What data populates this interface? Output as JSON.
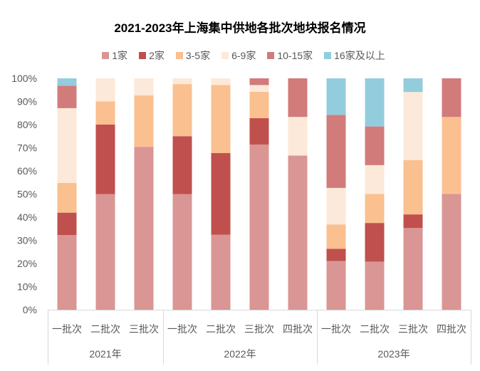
{
  "chart_data": {
    "type": "bar",
    "orientation": "vertical",
    "stacking": "percent",
    "title": "2021-2023年上海集中供地各批次地块报名情况",
    "xlabel": "",
    "ylabel": "",
    "ylim": [
      0,
      100
    ],
    "yticks": [
      {
        "value": 0,
        "label": "0%"
      },
      {
        "value": 10,
        "label": "10%"
      },
      {
        "value": 20,
        "label": "20%"
      },
      {
        "value": 30,
        "label": "30%"
      },
      {
        "value": 40,
        "label": "40%"
      },
      {
        "value": 50,
        "label": "50%"
      },
      {
        "value": 60,
        "label": "60%"
      },
      {
        "value": 70,
        "label": "70%"
      },
      {
        "value": 80,
        "label": "80%"
      },
      {
        "value": 90,
        "label": "90%"
      },
      {
        "value": 100,
        "label": "100%"
      }
    ],
    "grid": false,
    "legend_position": "top",
    "groups": [
      {
        "label": "2021年",
        "categories": [
          "一批次",
          "二批次",
          "三批次"
        ]
      },
      {
        "label": "2022年",
        "categories": [
          "一批次",
          "二批次",
          "三批次",
          "四批次"
        ]
      },
      {
        "label": "2023年",
        "categories": [
          "一批次",
          "二批次",
          "三批次",
          "四批次"
        ]
      }
    ],
    "series": [
      {
        "name": "1家",
        "color": "#D99694",
        "values": [
          32.3,
          50,
          70.4,
          50,
          32.4,
          71.4,
          66.7,
          21.1,
          20.8,
          35.3,
          50
        ]
      },
      {
        "name": "2家",
        "color": "#C0504D",
        "values": [
          9.7,
          30,
          0,
          25,
          35.3,
          11.4,
          0,
          5.3,
          16.7,
          5.9,
          0
        ]
      },
      {
        "name": "3-5家",
        "color": "#FAC090",
        "values": [
          12.9,
          10,
          22.2,
          22.5,
          29.4,
          11.4,
          0,
          10.5,
          12.5,
          23.5,
          33.3
        ]
      },
      {
        "name": "6-9家",
        "color": "#FDE9D9",
        "values": [
          32.3,
          10,
          7.4,
          2.5,
          2.9,
          2.9,
          16.7,
          15.8,
          12.5,
          29.4,
          0
        ]
      },
      {
        "name": "10-15家",
        "color": "#D27B7B",
        "values": [
          9.7,
          0,
          0,
          0,
          0,
          2.9,
          16.7,
          31.6,
          16.7,
          0,
          16.7
        ]
      },
      {
        "name": "16家及以上",
        "color": "#93CDDD",
        "values": [
          3.2,
          0,
          0,
          0,
          0,
          0,
          0,
          15.8,
          20.8,
          5.9,
          0
        ]
      }
    ],
    "axis_color": "#D9D9D9",
    "label_color": "#595959"
  }
}
